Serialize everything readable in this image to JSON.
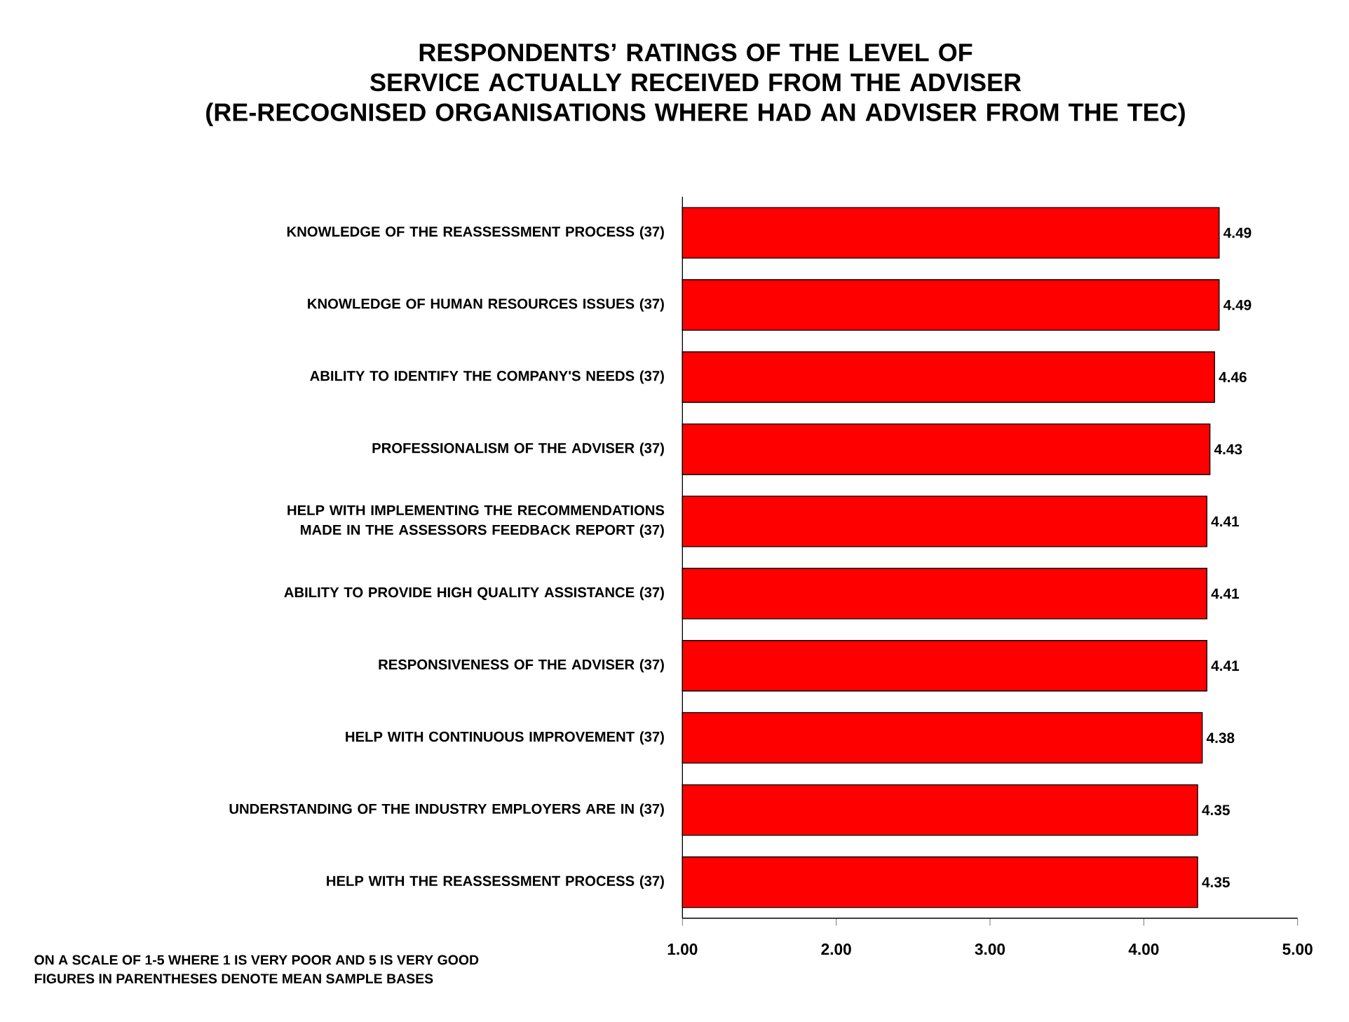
{
  "chart_data": {
    "type": "bar",
    "orientation": "horizontal",
    "title": "RESPONDENTS’ RATINGS OF THE LEVEL OF SERVICE ACTUALLY RECEIVED FROM THE ADVISER",
    "subtitle": "(RE-RECOGNISED ORGANISATIONS WHERE HAD AN ADVISER FROM THE TEC)",
    "categories": [
      "KNOWLEDGE OF THE REASSESSMENT PROCESS (37)",
      "KNOWLEDGE OF HUMAN RESOURCES ISSUES (37)",
      "ABILITY TO IDENTIFY THE COMPANY'S NEEDS (37)",
      "PROFESSIONALISM OF THE ADVISER (37)",
      "HELP WITH IMPLEMENTING THE RECOMMENDATIONS MADE IN THE ASSESSORS FEEDBACK REPORT (37)",
      "ABILITY TO PROVIDE HIGH QUALITY ASSISTANCE (37)",
      "RESPONSIVENESS OF THE ADVISER (37)",
      "HELP WITH CONTINUOUS IMPROVEMENT (37)",
      "UNDERSTANDING OF THE INDUSTRY EMPLOYERS ARE IN (37)",
      "HELP WITH THE REASSESSMENT PROCESS (37)"
    ],
    "values": [
      4.49,
      4.49,
      4.46,
      4.43,
      4.41,
      4.41,
      4.41,
      4.38,
      4.35,
      4.35
    ],
    "color": "#ff0000",
    "xlim": [
      1,
      5
    ],
    "xticks": [
      {
        "value": 1,
        "label": "1.00"
      },
      {
        "value": 2,
        "label": "2.00"
      },
      {
        "value": 3,
        "label": "3.00"
      },
      {
        "value": 4,
        "label": "4.00"
      },
      {
        "value": 5,
        "label": "5.00"
      }
    ],
    "data_labels": true,
    "grid": false,
    "annotations": [
      "ON A SCALE OF 1-5 WHERE 1 IS VERY POOR AND 5 IS VERY GOOD",
      "FIGURES IN PARENTHESES DENOTE MEAN SAMPLE BASES"
    ]
  }
}
